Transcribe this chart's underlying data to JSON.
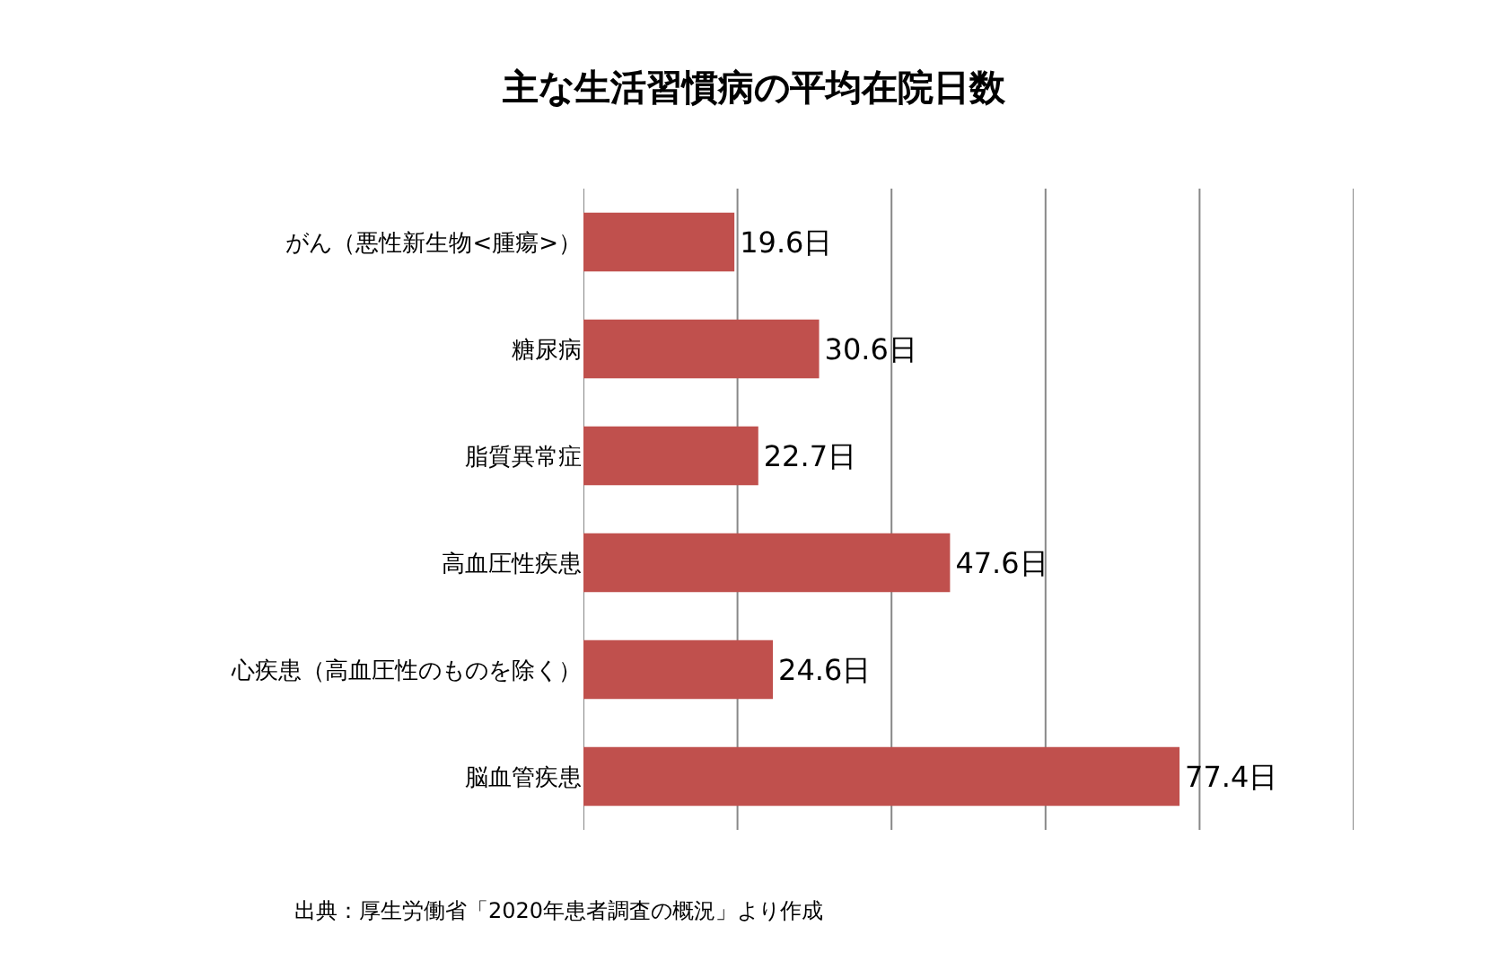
{
  "chart_data": {
    "type": "bar",
    "orientation": "horizontal",
    "title": "主な生活習慣病の平均在院日数",
    "categories": [
      "がん（悪性新生物<腫瘍>）",
      "糖尿病",
      "脂質異常症",
      "高血圧性疾患",
      "心疾患（高血圧性のものを除く）",
      "脳血管疾患"
    ],
    "values": [
      19.6,
      30.6,
      22.7,
      47.6,
      24.6,
      77.4
    ],
    "value_labels": [
      "19.6日",
      "30.6日",
      "22.7日",
      "47.6日",
      "24.6日",
      "77.4日"
    ],
    "color": "#c0504d",
    "xlim": [
      0,
      100
    ],
    "xticks": [
      {
        "value": 0,
        "label": null
      },
      {
        "value": 20,
        "label": null
      },
      {
        "value": 40,
        "label": null
      },
      {
        "value": 60,
        "label": null
      },
      {
        "value": 80,
        "label": null
      },
      {
        "value": 100,
        "label": null
      }
    ],
    "tick_labels": "y",
    "grid": "x",
    "annotations": [
      "出典：厚生労働省「2020年患者調査の概況」より作成"
    ]
  }
}
